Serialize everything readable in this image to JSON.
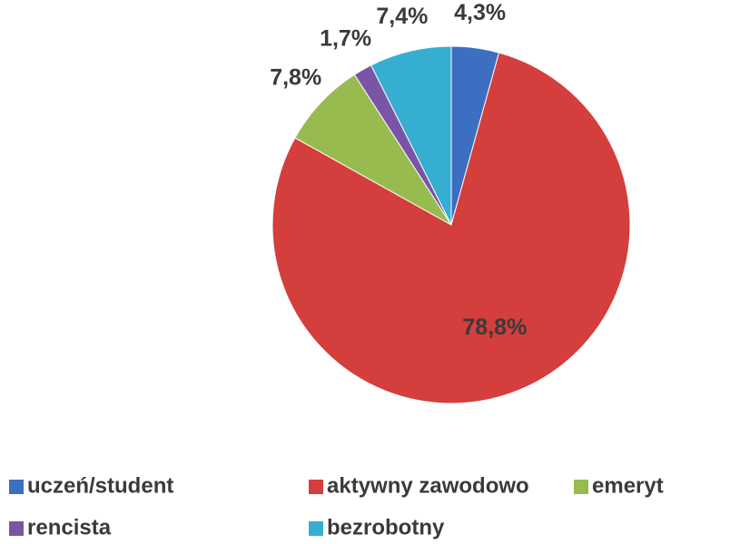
{
  "chart_data": {
    "type": "pie",
    "categories": [
      "uczeń/student",
      "aktywny zawodowo",
      "emeryt",
      "rencista",
      "bezrobotny"
    ],
    "values": [
      4.3,
      78.8,
      7.8,
      1.7,
      7.4
    ],
    "value_labels": [
      "4,3%",
      "78,8%",
      "7,8%",
      "1,7%",
      "7,4%"
    ],
    "colors": [
      "#3c6ec2",
      "#d43e3c",
      "#97bb4e",
      "#7a55a6",
      "#36aed2"
    ],
    "legend": "bottom"
  }
}
